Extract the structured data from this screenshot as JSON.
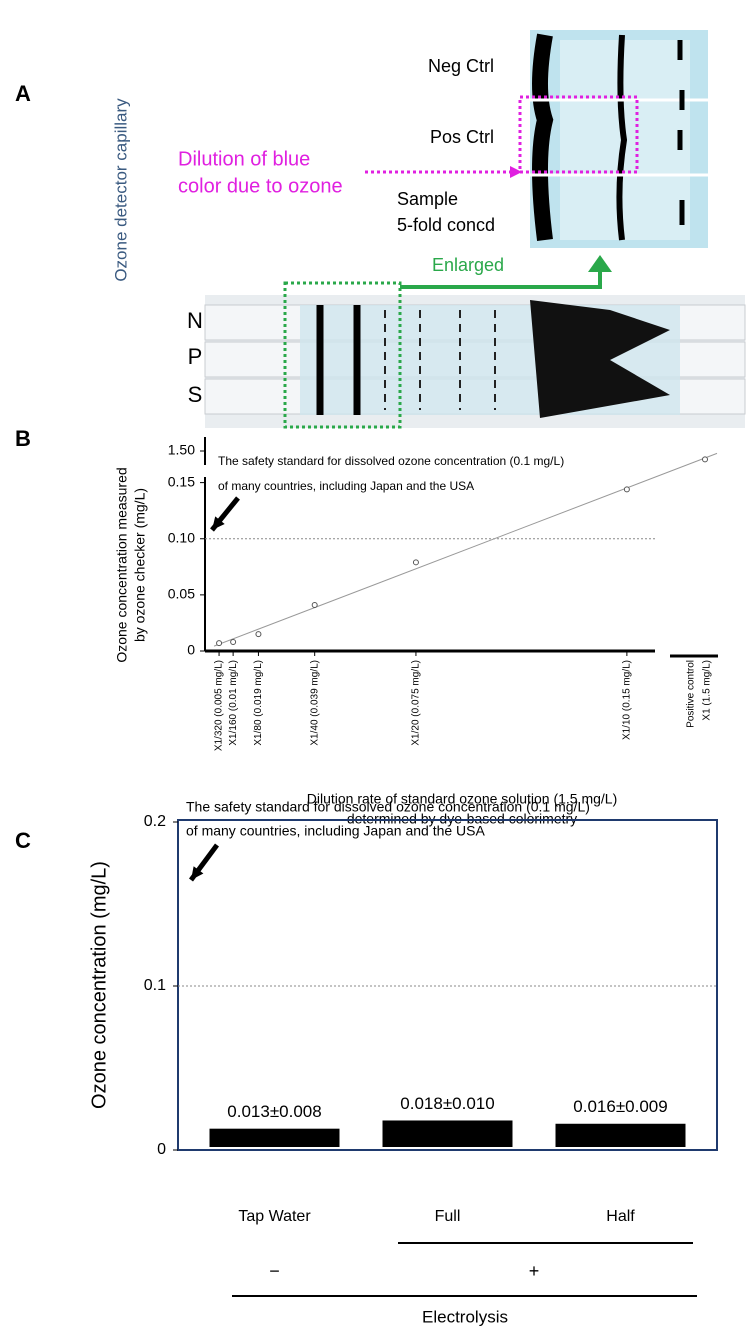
{
  "panel_labels": [
    "A",
    "B",
    "C"
  ],
  "panel_a": {
    "side_label": "Ozone detector capillary",
    "rows": [
      "Neg Ctrl",
      "Pos Ctrl"
    ],
    "sample": [
      "Sample",
      "5-fold concd"
    ],
    "dilution_note": [
      "Dilution of blue",
      "color due to ozone"
    ],
    "enlarged": "Enlarged",
    "tubes": [
      "N",
      "P",
      "S"
    ]
  },
  "chart_data": [
    {
      "type": "scatter",
      "ylabel": [
        "Ozone concentration measured",
        "by ozone checker (mg/L)"
      ],
      "xlabel": [
        "Dilution rate of standard ozone solution (1.5 mg/L)",
        "determined by dye-based colorimetry"
      ],
      "x": [
        0.005,
        0.01,
        0.019,
        0.039,
        0.075,
        0.15
      ],
      "x_labels": [
        "X1/320 (0.005 mg/L)",
        "X1/160 (0.01 mg/L)",
        "X1/80 (0.019 mg/L)",
        "X1/40 (0.039 mg/L)",
        "X1/20 (0.075 mg/L)",
        "X1/10 (0.15 mg/L)"
      ],
      "values": [
        0.007,
        0.008,
        0.015,
        0.041,
        0.079,
        0.144
      ],
      "xlim": [
        0,
        0.16
      ],
      "ylim": [
        0,
        0.155
      ],
      "yticks": [
        0,
        0.05,
        {
          "value": 0.1,
          "label": "0.10"
        },
        0.15
      ],
      "upper_ylim": [
        1.45,
        1.55
      ],
      "upper_yticks": [
        {
          "value": 1.5,
          "label": "1.50"
        }
      ],
      "positive_control": {
        "label": [
          "Positive control",
          "X1 (1.5 mg/L)"
        ],
        "value": 1.47
      },
      "reference_line": 0.1,
      "annotation": [
        "The safety standard for dissolved ozone concentration (0.1 mg/L)",
        "of many countries, including Japan and the USA"
      ]
    },
    {
      "type": "bar",
      "ylabel": "Ozone concentration (mg/L)",
      "categories": [
        "Tap Water",
        "Full",
        "Half"
      ],
      "values": [
        0.013,
        0.018,
        0.016
      ],
      "value_labels": [
        "0.013±0.008",
        "0.018±0.010",
        "0.016±0.009"
      ],
      "color": "#000000",
      "ylim": [
        0,
        0.2
      ],
      "yticks": [
        0,
        0.1,
        0.2
      ],
      "reference_line": 0.1,
      "annotation": [
        "The safety standard for dissolved ozone concentration (0.1 mg/L)",
        "of many countries, including Japan and the USA"
      ],
      "signs": [
        "−",
        "+"
      ],
      "group_label": "Electrolysis"
    }
  ]
}
